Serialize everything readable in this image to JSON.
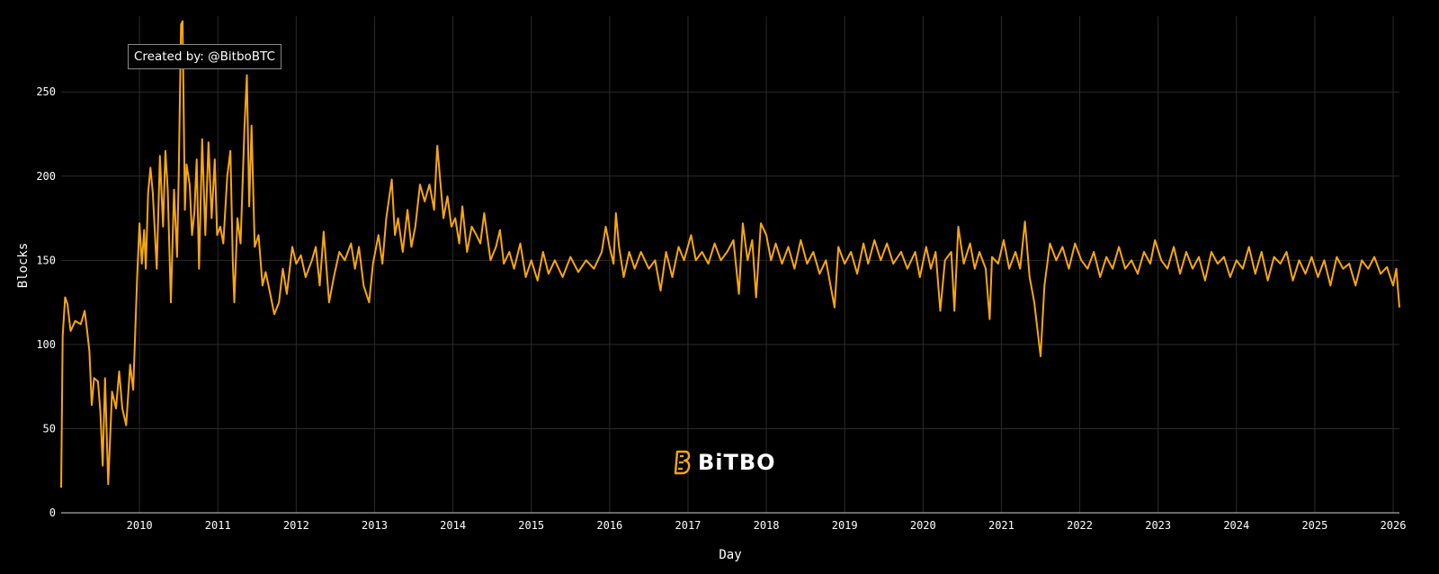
{
  "credit": "Created by: @BitboBTC",
  "logo_text": "BiTBO",
  "colors": {
    "background": "#000000",
    "grid": "#2b2b2b",
    "series": "#f7a70f",
    "text": "#ffffff"
  },
  "chart_data": {
    "type": "line",
    "xlabel": "Day",
    "ylabel": "Blocks",
    "x_range": [
      2009.0,
      2026.08
    ],
    "ylim": [
      0,
      295
    ],
    "yticks": [
      0,
      50,
      100,
      150,
      200,
      250
    ],
    "xticks": [
      "2010",
      "2011",
      "2012",
      "2013",
      "2014",
      "2015",
      "2016",
      "2017",
      "2018",
      "2019",
      "2020",
      "2021",
      "2022",
      "2023",
      "2024",
      "2025",
      "2026"
    ],
    "grid": true,
    "series": [
      {
        "color": "#f7a70f",
        "points": [
          [
            2009.0,
            15
          ],
          [
            2009.02,
            105
          ],
          [
            2009.05,
            128
          ],
          [
            2009.08,
            124
          ],
          [
            2009.12,
            108
          ],
          [
            2009.18,
            114
          ],
          [
            2009.25,
            112
          ],
          [
            2009.3,
            120
          ],
          [
            2009.33,
            109
          ],
          [
            2009.36,
            96
          ],
          [
            2009.39,
            64
          ],
          [
            2009.42,
            80
          ],
          [
            2009.47,
            78
          ],
          [
            2009.5,
            60
          ],
          [
            2009.53,
            28
          ],
          [
            2009.56,
            80
          ],
          [
            2009.6,
            17
          ],
          [
            2009.65,
            72
          ],
          [
            2009.7,
            62
          ],
          [
            2009.74,
            84
          ],
          [
            2009.78,
            62
          ],
          [
            2009.83,
            52
          ],
          [
            2009.88,
            88
          ],
          [
            2009.92,
            73
          ],
          [
            2009.97,
            140
          ],
          [
            2010.0,
            172
          ],
          [
            2010.03,
            148
          ],
          [
            2010.06,
            168
          ],
          [
            2010.08,
            145
          ],
          [
            2010.11,
            190
          ],
          [
            2010.14,
            205
          ],
          [
            2010.17,
            190
          ],
          [
            2010.22,
            145
          ],
          [
            2010.26,
            212
          ],
          [
            2010.3,
            170
          ],
          [
            2010.33,
            215
          ],
          [
            2010.36,
            192
          ],
          [
            2010.4,
            125
          ],
          [
            2010.44,
            192
          ],
          [
            2010.48,
            152
          ],
          [
            2010.5,
            200
          ],
          [
            2010.53,
            290
          ],
          [
            2010.55,
            292
          ],
          [
            2010.58,
            180
          ],
          [
            2010.6,
            207
          ],
          [
            2010.64,
            195
          ],
          [
            2010.67,
            165
          ],
          [
            2010.7,
            178
          ],
          [
            2010.73,
            210
          ],
          [
            2010.76,
            145
          ],
          [
            2010.8,
            222
          ],
          [
            2010.84,
            165
          ],
          [
            2010.88,
            220
          ],
          [
            2010.92,
            175
          ],
          [
            2010.96,
            210
          ],
          [
            2010.99,
            165
          ],
          [
            2011.03,
            170
          ],
          [
            2011.07,
            160
          ],
          [
            2011.12,
            200
          ],
          [
            2011.16,
            215
          ],
          [
            2011.19,
            150
          ],
          [
            2011.21,
            125
          ],
          [
            2011.25,
            175
          ],
          [
            2011.29,
            160
          ],
          [
            2011.34,
            230
          ],
          [
            2011.37,
            260
          ],
          [
            2011.4,
            182
          ],
          [
            2011.43,
            230
          ],
          [
            2011.47,
            158
          ],
          [
            2011.52,
            165
          ],
          [
            2011.57,
            135
          ],
          [
            2011.61,
            143
          ],
          [
            2011.66,
            132
          ],
          [
            2011.72,
            118
          ],
          [
            2011.78,
            125
          ],
          [
            2011.83,
            145
          ],
          [
            2011.88,
            130
          ],
          [
            2011.95,
            158
          ],
          [
            2012.0,
            148
          ],
          [
            2012.06,
            153
          ],
          [
            2012.12,
            140
          ],
          [
            2012.2,
            150
          ],
          [
            2012.25,
            158
          ],
          [
            2012.3,
            135
          ],
          [
            2012.35,
            167
          ],
          [
            2012.42,
            125
          ],
          [
            2012.48,
            140
          ],
          [
            2012.55,
            155
          ],
          [
            2012.62,
            150
          ],
          [
            2012.7,
            160
          ],
          [
            2012.75,
            145
          ],
          [
            2012.8,
            158
          ],
          [
            2012.86,
            135
          ],
          [
            2012.93,
            125
          ],
          [
            2012.98,
            148
          ],
          [
            2013.05,
            165
          ],
          [
            2013.1,
            148
          ],
          [
            2013.15,
            175
          ],
          [
            2013.22,
            198
          ],
          [
            2013.26,
            165
          ],
          [
            2013.3,
            175
          ],
          [
            2013.36,
            155
          ],
          [
            2013.42,
            180
          ],
          [
            2013.47,
            158
          ],
          [
            2013.52,
            170
          ],
          [
            2013.58,
            195
          ],
          [
            2013.64,
            185
          ],
          [
            2013.7,
            195
          ],
          [
            2013.76,
            180
          ],
          [
            2013.8,
            218
          ],
          [
            2013.84,
            196
          ],
          [
            2013.88,
            175
          ],
          [
            2013.93,
            188
          ],
          [
            2013.98,
            170
          ],
          [
            2014.03,
            175
          ],
          [
            2014.08,
            160
          ],
          [
            2014.12,
            182
          ],
          [
            2014.18,
            155
          ],
          [
            2014.24,
            170
          ],
          [
            2014.3,
            165
          ],
          [
            2014.35,
            160
          ],
          [
            2014.4,
            178
          ],
          [
            2014.48,
            150
          ],
          [
            2014.55,
            158
          ],
          [
            2014.6,
            168
          ],
          [
            2014.65,
            148
          ],
          [
            2014.72,
            155
          ],
          [
            2014.78,
            145
          ],
          [
            2014.86,
            160
          ],
          [
            2014.93,
            140
          ],
          [
            2015.0,
            150
          ],
          [
            2015.08,
            138
          ],
          [
            2015.15,
            155
          ],
          [
            2015.22,
            142
          ],
          [
            2015.3,
            150
          ],
          [
            2015.4,
            140
          ],
          [
            2015.5,
            152
          ],
          [
            2015.6,
            143
          ],
          [
            2015.7,
            150
          ],
          [
            2015.8,
            145
          ],
          [
            2015.9,
            155
          ],
          [
            2015.95,
            170
          ],
          [
            2016.0,
            158
          ],
          [
            2016.05,
            148
          ],
          [
            2016.08,
            178
          ],
          [
            2016.12,
            158
          ],
          [
            2016.18,
            140
          ],
          [
            2016.25,
            155
          ],
          [
            2016.32,
            145
          ],
          [
            2016.4,
            155
          ],
          [
            2016.5,
            145
          ],
          [
            2016.58,
            150
          ],
          [
            2016.65,
            132
          ],
          [
            2016.72,
            155
          ],
          [
            2016.8,
            140
          ],
          [
            2016.88,
            158
          ],
          [
            2016.95,
            150
          ],
          [
            2017.04,
            165
          ],
          [
            2017.1,
            150
          ],
          [
            2017.18,
            155
          ],
          [
            2017.26,
            148
          ],
          [
            2017.34,
            160
          ],
          [
            2017.42,
            150
          ],
          [
            2017.5,
            155
          ],
          [
            2017.58,
            162
          ],
          [
            2017.65,
            130
          ],
          [
            2017.7,
            172
          ],
          [
            2017.76,
            150
          ],
          [
            2017.82,
            162
          ],
          [
            2017.87,
            128
          ],
          [
            2017.93,
            172
          ],
          [
            2018.0,
            165
          ],
          [
            2018.06,
            150
          ],
          [
            2018.12,
            160
          ],
          [
            2018.2,
            148
          ],
          [
            2018.28,
            158
          ],
          [
            2018.36,
            145
          ],
          [
            2018.44,
            162
          ],
          [
            2018.52,
            148
          ],
          [
            2018.6,
            155
          ],
          [
            2018.68,
            142
          ],
          [
            2018.76,
            150
          ],
          [
            2018.82,
            135
          ],
          [
            2018.87,
            122
          ],
          [
            2018.92,
            158
          ],
          [
            2019.0,
            148
          ],
          [
            2019.08,
            155
          ],
          [
            2019.16,
            142
          ],
          [
            2019.24,
            160
          ],
          [
            2019.3,
            148
          ],
          [
            2019.38,
            162
          ],
          [
            2019.46,
            150
          ],
          [
            2019.54,
            160
          ],
          [
            2019.62,
            148
          ],
          [
            2019.72,
            155
          ],
          [
            2019.8,
            145
          ],
          [
            2019.9,
            155
          ],
          [
            2019.96,
            140
          ],
          [
            2020.04,
            158
          ],
          [
            2020.1,
            145
          ],
          [
            2020.16,
            155
          ],
          [
            2020.22,
            120
          ],
          [
            2020.28,
            150
          ],
          [
            2020.36,
            155
          ],
          [
            2020.4,
            120
          ],
          [
            2020.45,
            170
          ],
          [
            2020.52,
            148
          ],
          [
            2020.6,
            160
          ],
          [
            2020.66,
            145
          ],
          [
            2020.72,
            155
          ],
          [
            2020.8,
            145
          ],
          [
            2020.85,
            115
          ],
          [
            2020.88,
            152
          ],
          [
            2020.96,
            148
          ],
          [
            2021.03,
            162
          ],
          [
            2021.1,
            145
          ],
          [
            2021.18,
            155
          ],
          [
            2021.24,
            145
          ],
          [
            2021.3,
            173
          ],
          [
            2021.36,
            140
          ],
          [
            2021.42,
            125
          ],
          [
            2021.5,
            93
          ],
          [
            2021.55,
            135
          ],
          [
            2021.62,
            160
          ],
          [
            2021.7,
            150
          ],
          [
            2021.78,
            158
          ],
          [
            2021.86,
            145
          ],
          [
            2021.94,
            160
          ],
          [
            2022.02,
            150
          ],
          [
            2022.1,
            145
          ],
          [
            2022.18,
            155
          ],
          [
            2022.26,
            140
          ],
          [
            2022.34,
            152
          ],
          [
            2022.42,
            145
          ],
          [
            2022.5,
            158
          ],
          [
            2022.58,
            145
          ],
          [
            2022.66,
            150
          ],
          [
            2022.74,
            142
          ],
          [
            2022.82,
            155
          ],
          [
            2022.9,
            148
          ],
          [
            2022.96,
            162
          ],
          [
            2023.04,
            150
          ],
          [
            2023.12,
            145
          ],
          [
            2023.2,
            158
          ],
          [
            2023.28,
            142
          ],
          [
            2023.36,
            155
          ],
          [
            2023.44,
            145
          ],
          [
            2023.52,
            152
          ],
          [
            2023.6,
            138
          ],
          [
            2023.68,
            155
          ],
          [
            2023.76,
            148
          ],
          [
            2023.84,
            152
          ],
          [
            2023.92,
            140
          ],
          [
            2024.0,
            150
          ],
          [
            2024.08,
            145
          ],
          [
            2024.16,
            158
          ],
          [
            2024.24,
            142
          ],
          [
            2024.32,
            155
          ],
          [
            2024.4,
            138
          ],
          [
            2024.48,
            152
          ],
          [
            2024.56,
            148
          ],
          [
            2024.64,
            155
          ],
          [
            2024.72,
            138
          ],
          [
            2024.8,
            150
          ],
          [
            2024.88,
            142
          ],
          [
            2024.96,
            152
          ],
          [
            2025.04,
            140
          ],
          [
            2025.12,
            150
          ],
          [
            2025.2,
            135
          ],
          [
            2025.28,
            152
          ],
          [
            2025.36,
            145
          ],
          [
            2025.44,
            148
          ],
          [
            2025.52,
            135
          ],
          [
            2025.6,
            150
          ],
          [
            2025.68,
            145
          ],
          [
            2025.76,
            152
          ],
          [
            2025.84,
            142
          ],
          [
            2025.92,
            146
          ],
          [
            2026.0,
            135
          ],
          [
            2026.04,
            145
          ],
          [
            2026.08,
            122
          ]
        ]
      }
    ]
  }
}
